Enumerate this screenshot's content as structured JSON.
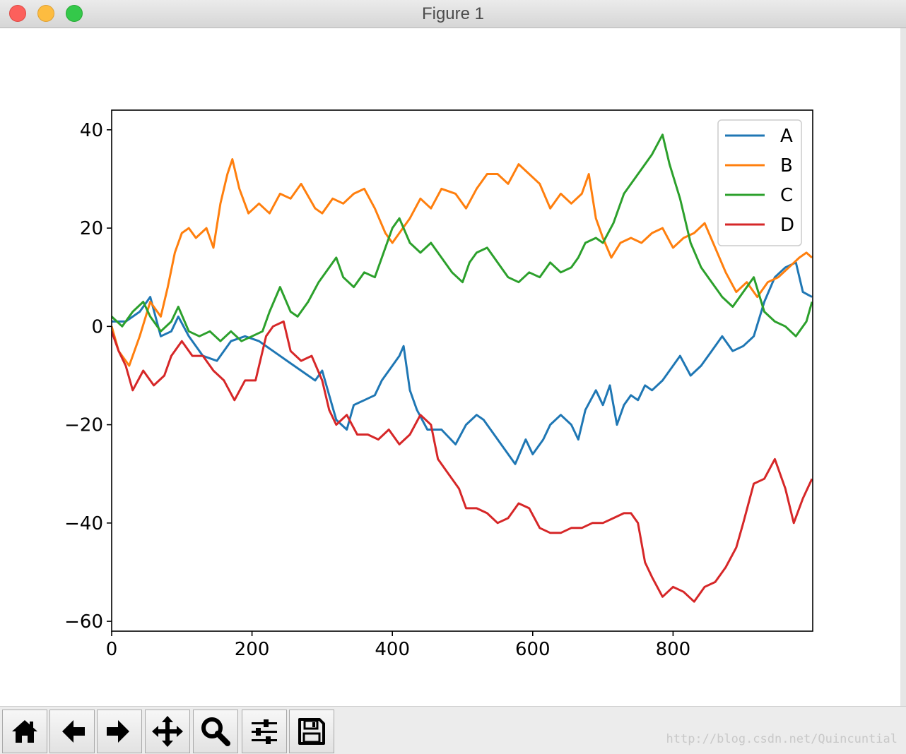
{
  "window": {
    "title": "Figure 1"
  },
  "toolbar": {
    "buttons": [
      {
        "name": "home",
        "icon": "home-icon"
      },
      {
        "name": "back",
        "icon": "arrow-left-icon"
      },
      {
        "name": "forward",
        "icon": "arrow-right-icon"
      },
      {
        "name": "pan",
        "icon": "move-icon"
      },
      {
        "name": "zoom",
        "icon": "magnifier-icon"
      },
      {
        "name": "subplots",
        "icon": "sliders-icon"
      },
      {
        "name": "save",
        "icon": "floppy-disk-icon"
      }
    ]
  },
  "watermark": "http://blog.csdn.net/Quincuntial",
  "chart_data": {
    "type": "line",
    "xlim": [
      0,
      999
    ],
    "ylim": [
      -62,
      44
    ],
    "xticks": [
      0,
      200,
      400,
      600,
      800
    ],
    "xtick_labels": [
      "0",
      "200",
      "400",
      "600",
      "800"
    ],
    "yticks": [
      -60,
      -40,
      -20,
      0,
      20,
      40
    ],
    "ytick_labels": [
      "−60",
      "−40",
      "−20",
      "0",
      "20",
      "40"
    ],
    "legend_position": "top-right",
    "series": [
      {
        "name": "A",
        "color": "#1f77b4",
        "points": [
          [
            0,
            1
          ],
          [
            20,
            1
          ],
          [
            40,
            3
          ],
          [
            55,
            6
          ],
          [
            70,
            -2
          ],
          [
            85,
            -1
          ],
          [
            95,
            2
          ],
          [
            110,
            -2
          ],
          [
            130,
            -6
          ],
          [
            150,
            -7
          ],
          [
            170,
            -3
          ],
          [
            190,
            -2
          ],
          [
            210,
            -3
          ],
          [
            230,
            -5
          ],
          [
            250,
            -7
          ],
          [
            270,
            -9
          ],
          [
            290,
            -11
          ],
          [
            300,
            -9
          ],
          [
            310,
            -14
          ],
          [
            320,
            -19
          ],
          [
            335,
            -21
          ],
          [
            345,
            -16
          ],
          [
            360,
            -15
          ],
          [
            375,
            -14
          ],
          [
            385,
            -11
          ],
          [
            400,
            -8
          ],
          [
            410,
            -6
          ],
          [
            416,
            -4
          ],
          [
            425,
            -13
          ],
          [
            435,
            -17
          ],
          [
            450,
            -21
          ],
          [
            470,
            -21
          ],
          [
            490,
            -24
          ],
          [
            505,
            -20
          ],
          [
            520,
            -18
          ],
          [
            530,
            -19
          ],
          [
            545,
            -22
          ],
          [
            560,
            -25
          ],
          [
            575,
            -28
          ],
          [
            590,
            -23
          ],
          [
            600,
            -26
          ],
          [
            615,
            -23
          ],
          [
            625,
            -20
          ],
          [
            640,
            -18
          ],
          [
            655,
            -20
          ],
          [
            665,
            -23
          ],
          [
            675,
            -17
          ],
          [
            690,
            -13
          ],
          [
            700,
            -16
          ],
          [
            710,
            -12
          ],
          [
            720,
            -20
          ],
          [
            730,
            -16
          ],
          [
            740,
            -14
          ],
          [
            750,
            -15
          ],
          [
            760,
            -12
          ],
          [
            770,
            -13
          ],
          [
            785,
            -11
          ],
          [
            795,
            -9
          ],
          [
            810,
            -6
          ],
          [
            825,
            -10
          ],
          [
            840,
            -8
          ],
          [
            855,
            -5
          ],
          [
            870,
            -2
          ],
          [
            885,
            -5
          ],
          [
            900,
            -4
          ],
          [
            915,
            -2
          ],
          [
            930,
            5
          ],
          [
            945,
            10
          ],
          [
            960,
            12
          ],
          [
            975,
            13
          ],
          [
            985,
            7
          ],
          [
            998,
            6
          ]
        ]
      },
      {
        "name": "B",
        "color": "#ff7f0e",
        "points": [
          [
            0,
            0
          ],
          [
            10,
            -5
          ],
          [
            25,
            -8
          ],
          [
            40,
            -2
          ],
          [
            55,
            5
          ],
          [
            70,
            2
          ],
          [
            80,
            8
          ],
          [
            90,
            15
          ],
          [
            100,
            19
          ],
          [
            110,
            20
          ],
          [
            120,
            18
          ],
          [
            135,
            20
          ],
          [
            145,
            16
          ],
          [
            155,
            25
          ],
          [
            165,
            31
          ],
          [
            172,
            34
          ],
          [
            182,
            28
          ],
          [
            195,
            23
          ],
          [
            210,
            25
          ],
          [
            225,
            23
          ],
          [
            240,
            27
          ],
          [
            255,
            26
          ],
          [
            270,
            29
          ],
          [
            290,
            24
          ],
          [
            300,
            23
          ],
          [
            315,
            26
          ],
          [
            330,
            25
          ],
          [
            345,
            27
          ],
          [
            360,
            28
          ],
          [
            375,
            24
          ],
          [
            390,
            19
          ],
          [
            400,
            17
          ],
          [
            410,
            19
          ],
          [
            425,
            22
          ],
          [
            440,
            26
          ],
          [
            455,
            24
          ],
          [
            470,
            28
          ],
          [
            490,
            27
          ],
          [
            505,
            24
          ],
          [
            520,
            28
          ],
          [
            535,
            31
          ],
          [
            550,
            31
          ],
          [
            565,
            29
          ],
          [
            580,
            33
          ],
          [
            595,
            31
          ],
          [
            610,
            29
          ],
          [
            625,
            24
          ],
          [
            640,
            27
          ],
          [
            655,
            25
          ],
          [
            670,
            27
          ],
          [
            680,
            31
          ],
          [
            690,
            22
          ],
          [
            700,
            18
          ],
          [
            712,
            14
          ],
          [
            725,
            17
          ],
          [
            740,
            18
          ],
          [
            755,
            17
          ],
          [
            770,
            19
          ],
          [
            785,
            20
          ],
          [
            800,
            16
          ],
          [
            815,
            18
          ],
          [
            830,
            19
          ],
          [
            845,
            21
          ],
          [
            860,
            16
          ],
          [
            875,
            11
          ],
          [
            890,
            7
          ],
          [
            905,
            9
          ],
          [
            920,
            6
          ],
          [
            935,
            9
          ],
          [
            950,
            10
          ],
          [
            965,
            12
          ],
          [
            980,
            14
          ],
          [
            990,
            15
          ],
          [
            998,
            14
          ]
        ]
      },
      {
        "name": "C",
        "color": "#2ca02c",
        "points": [
          [
            0,
            2
          ],
          [
            15,
            0
          ],
          [
            30,
            3
          ],
          [
            45,
            5
          ],
          [
            55,
            2
          ],
          [
            70,
            -1
          ],
          [
            85,
            1
          ],
          [
            95,
            4
          ],
          [
            110,
            -1
          ],
          [
            125,
            -2
          ],
          [
            140,
            -1
          ],
          [
            155,
            -3
          ],
          [
            170,
            -1
          ],
          [
            185,
            -3
          ],
          [
            200,
            -2
          ],
          [
            215,
            -1
          ],
          [
            225,
            3
          ],
          [
            240,
            8
          ],
          [
            255,
            3
          ],
          [
            265,
            2
          ],
          [
            280,
            5
          ],
          [
            295,
            9
          ],
          [
            305,
            11
          ],
          [
            320,
            14
          ],
          [
            330,
            10
          ],
          [
            345,
            8
          ],
          [
            360,
            11
          ],
          [
            375,
            10
          ],
          [
            390,
            16
          ],
          [
            400,
            20
          ],
          [
            410,
            22
          ],
          [
            425,
            17
          ],
          [
            440,
            15
          ],
          [
            455,
            17
          ],
          [
            470,
            14
          ],
          [
            485,
            11
          ],
          [
            500,
            9
          ],
          [
            510,
            13
          ],
          [
            520,
            15
          ],
          [
            535,
            16
          ],
          [
            550,
            13
          ],
          [
            565,
            10
          ],
          [
            580,
            9
          ],
          [
            595,
            11
          ],
          [
            610,
            10
          ],
          [
            625,
            13
          ],
          [
            640,
            11
          ],
          [
            655,
            12
          ],
          [
            665,
            14
          ],
          [
            675,
            17
          ],
          [
            690,
            18
          ],
          [
            700,
            17
          ],
          [
            715,
            21
          ],
          [
            730,
            27
          ],
          [
            745,
            30
          ],
          [
            760,
            33
          ],
          [
            770,
            35
          ],
          [
            785,
            39
          ],
          [
            795,
            33
          ],
          [
            810,
            26
          ],
          [
            825,
            17
          ],
          [
            840,
            12
          ],
          [
            855,
            9
          ],
          [
            870,
            6
          ],
          [
            885,
            4
          ],
          [
            900,
            7
          ],
          [
            915,
            10
          ],
          [
            930,
            3
          ],
          [
            945,
            1
          ],
          [
            960,
            0
          ],
          [
            975,
            -2
          ],
          [
            990,
            1
          ],
          [
            998,
            5
          ]
        ]
      },
      {
        "name": "D",
        "color": "#d62728",
        "points": [
          [
            0,
            -1
          ],
          [
            10,
            -5
          ],
          [
            20,
            -8
          ],
          [
            30,
            -13
          ],
          [
            45,
            -9
          ],
          [
            60,
            -12
          ],
          [
            75,
            -10
          ],
          [
            85,
            -6
          ],
          [
            100,
            -3
          ],
          [
            115,
            -6
          ],
          [
            130,
            -6
          ],
          [
            145,
            -9
          ],
          [
            160,
            -11
          ],
          [
            175,
            -15
          ],
          [
            190,
            -11
          ],
          [
            205,
            -11
          ],
          [
            220,
            -2
          ],
          [
            230,
            0
          ],
          [
            245,
            1
          ],
          [
            255,
            -5
          ],
          [
            270,
            -7
          ],
          [
            285,
            -6
          ],
          [
            300,
            -11
          ],
          [
            310,
            -17
          ],
          [
            320,
            -20
          ],
          [
            335,
            -18
          ],
          [
            350,
            -22
          ],
          [
            365,
            -22
          ],
          [
            380,
            -23
          ],
          [
            395,
            -21
          ],
          [
            410,
            -24
          ],
          [
            425,
            -22
          ],
          [
            440,
            -18
          ],
          [
            455,
            -20
          ],
          [
            465,
            -27
          ],
          [
            480,
            -30
          ],
          [
            495,
            -33
          ],
          [
            505,
            -37
          ],
          [
            520,
            -37
          ],
          [
            535,
            -38
          ],
          [
            550,
            -40
          ],
          [
            565,
            -39
          ],
          [
            580,
            -36
          ],
          [
            595,
            -37
          ],
          [
            610,
            -41
          ],
          [
            625,
            -42
          ],
          [
            640,
            -42
          ],
          [
            655,
            -41
          ],
          [
            670,
            -41
          ],
          [
            685,
            -40
          ],
          [
            700,
            -40
          ],
          [
            715,
            -39
          ],
          [
            730,
            -38
          ],
          [
            740,
            -38
          ],
          [
            750,
            -40
          ],
          [
            760,
            -48
          ],
          [
            770,
            -51
          ],
          [
            785,
            -55
          ],
          [
            800,
            -53
          ],
          [
            815,
            -54
          ],
          [
            830,
            -56
          ],
          [
            845,
            -53
          ],
          [
            860,
            -52
          ],
          [
            875,
            -49
          ],
          [
            890,
            -45
          ],
          [
            900,
            -40
          ],
          [
            915,
            -32
          ],
          [
            930,
            -31
          ],
          [
            945,
            -27
          ],
          [
            960,
            -33
          ],
          [
            972,
            -40
          ],
          [
            985,
            -35
          ],
          [
            998,
            -31
          ]
        ]
      }
    ]
  }
}
